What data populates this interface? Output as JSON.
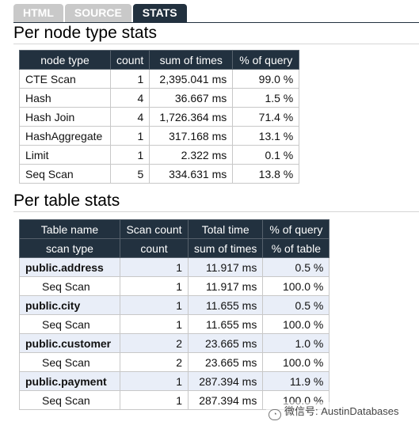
{
  "tabs": [
    {
      "label": "HTML",
      "active": false
    },
    {
      "label": "SOURCE",
      "active": false
    },
    {
      "label": "STATS",
      "active": true
    }
  ],
  "node_section": {
    "title": "Per node type stats",
    "headers": [
      "node type",
      "count",
      "sum of times",
      "% of query"
    ],
    "rows": [
      [
        "CTE Scan",
        "1",
        "2,395.041 ms",
        "99.0 %"
      ],
      [
        "Hash",
        "4",
        "36.667 ms",
        "1.5 %"
      ],
      [
        "Hash Join",
        "4",
        "1,726.364 ms",
        "71.4 %"
      ],
      [
        "HashAggregate",
        "1",
        "317.168 ms",
        "13.1 %"
      ],
      [
        "Limit",
        "1",
        "2.322 ms",
        "0.1 %"
      ],
      [
        "Seq Scan",
        "5",
        "334.631 ms",
        "13.8 %"
      ]
    ]
  },
  "table_section": {
    "title": "Per table stats",
    "headers1": [
      "Table name",
      "Scan count",
      "Total time",
      "% of query"
    ],
    "headers2": [
      "scan type",
      "count",
      "sum of times",
      "% of table"
    ],
    "rows": [
      {
        "name": "public.address",
        "count": "1",
        "time": "11.917 ms",
        "pct": "0.5 %",
        "sub": {
          "name": "Seq Scan",
          "count": "1",
          "time": "11.917 ms",
          "pct": "100.0 %"
        }
      },
      {
        "name": "public.city",
        "count": "1",
        "time": "11.655 ms",
        "pct": "0.5 %",
        "sub": {
          "name": "Seq Scan",
          "count": "1",
          "time": "11.655 ms",
          "pct": "100.0 %"
        }
      },
      {
        "name": "public.customer",
        "count": "2",
        "time": "23.665 ms",
        "pct": "1.0 %",
        "sub": {
          "name": "Seq Scan",
          "count": "2",
          "time": "23.665 ms",
          "pct": "100.0 %"
        }
      },
      {
        "name": "public.payment",
        "count": "1",
        "time": "287.394 ms",
        "pct": "11.9 %",
        "sub": {
          "name": "Seq Scan",
          "count": "1",
          "time": "287.394 ms",
          "pct": "100.0 %"
        }
      }
    ]
  },
  "watermark": {
    "text": "微信号: AustinDatabases",
    "icon": "wechat-icon"
  },
  "colors": {
    "header_bg": "#22313f",
    "group_row_bg": "#e9eef8",
    "inactive_tab": "#c9c9c9"
  }
}
